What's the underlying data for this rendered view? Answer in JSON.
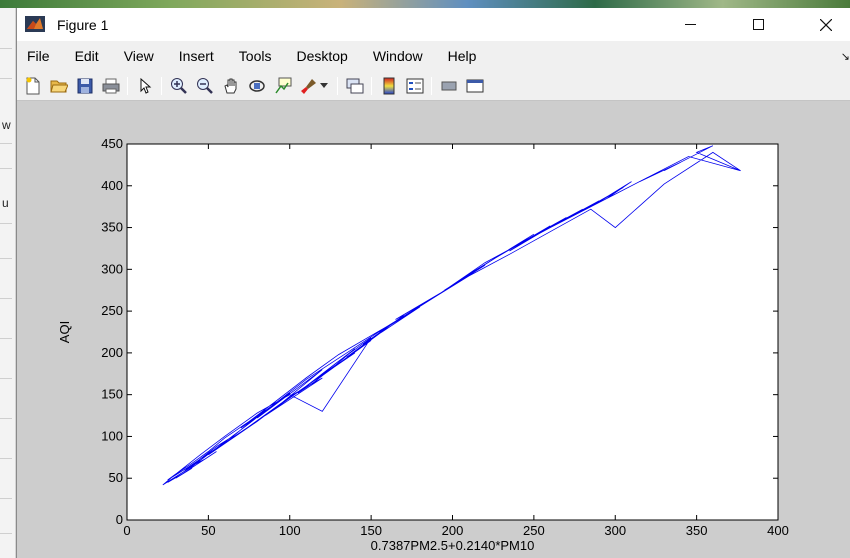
{
  "window": {
    "title": "Figure 1",
    "controls": {
      "minimize": "minimize-button",
      "maximize": "maximize-button",
      "close": "close-button"
    }
  },
  "menu": [
    "File",
    "Edit",
    "View",
    "Insert",
    "Tools",
    "Desktop",
    "Window",
    "Help"
  ],
  "toolbar_icons": [
    "new-figure-icon",
    "open-file-icon",
    "save-icon",
    "print-icon",
    "pointer-icon",
    "zoom-in-icon",
    "zoom-out-icon",
    "pan-icon",
    "rotate-3d-icon",
    "data-cursor-icon",
    "brush-icon",
    "link-plot-icon",
    "colorbar-icon",
    "legend-icon",
    "hide-plot-tools-icon",
    "show-plot-tools-icon"
  ],
  "left_edge_glyphs": [
    "w",
    "u"
  ],
  "colors": {
    "line": "#0000ee",
    "figure_bg": "#cdcdcd",
    "axes_bg": "#ffffff"
  },
  "chart_data": {
    "type": "line",
    "xlabel": "0.7387PM2.5+0.2140*PM10",
    "ylabel": "AQI",
    "xlim": [
      0,
      400
    ],
    "ylim": [
      0,
      450
    ],
    "xticks": [
      0,
      50,
      100,
      150,
      200,
      250,
      300,
      350,
      400
    ],
    "yticks": [
      0,
      50,
      100,
      150,
      200,
      250,
      300,
      350,
      400,
      450
    ],
    "grid": false,
    "legend": "none",
    "x": [
      25,
      40,
      30,
      55,
      48,
      35,
      75,
      60,
      50,
      80,
      95,
      70,
      110,
      85,
      120,
      100,
      90,
      130,
      115,
      105,
      140,
      125,
      150,
      118,
      160,
      135,
      170,
      145,
      180,
      155,
      190,
      165,
      200,
      175,
      210,
      185,
      220,
      195,
      230,
      205,
      240,
      215,
      250,
      225,
      260,
      235,
      270,
      245,
      280,
      255,
      290,
      265,
      300,
      275,
      305,
      285,
      310,
      295,
      320,
      315,
      340,
      330,
      360,
      350,
      377,
      345,
      300,
      260,
      220,
      190,
      160,
      130,
      110,
      90,
      75,
      60,
      50,
      40,
      30,
      25,
      45,
      35,
      55,
      65,
      85,
      70,
      100,
      80,
      120,
      95,
      140,
      110,
      130,
      150,
      120,
      100,
      80,
      60,
      45,
      30,
      22,
      40,
      55,
      70,
      90,
      110,
      135,
      160,
      185,
      210,
      235,
      260,
      285,
      300,
      330,
      360,
      377
    ],
    "y": [
      45,
      62,
      50,
      82,
      73,
      60,
      112,
      92,
      78,
      118,
      140,
      105,
      160,
      125,
      170,
      148,
      132,
      188,
      165,
      152,
      205,
      180,
      215,
      170,
      230,
      195,
      245,
      210,
      255,
      225,
      268,
      240,
      280,
      250,
      292,
      262,
      305,
      275,
      318,
      288,
      330,
      300,
      342,
      312,
      352,
      322,
      362,
      335,
      372,
      345,
      382,
      355,
      392,
      365,
      398,
      375,
      405,
      385,
      410,
      405,
      428,
      418,
      448,
      440,
      418,
      435,
      390,
      350,
      308,
      268,
      232,
      198,
      170,
      140,
      118,
      98,
      82,
      68,
      55,
      48,
      72,
      58,
      88,
      100,
      132,
      110,
      152,
      122,
      180,
      140,
      200,
      160,
      190,
      218,
      130,
      150,
      128,
      100,
      78,
      55,
      42,
      64,
      86,
      108,
      138,
      168,
      200,
      232,
      262,
      292,
      318,
      345,
      372,
      350,
      402,
      440,
      418
    ]
  }
}
